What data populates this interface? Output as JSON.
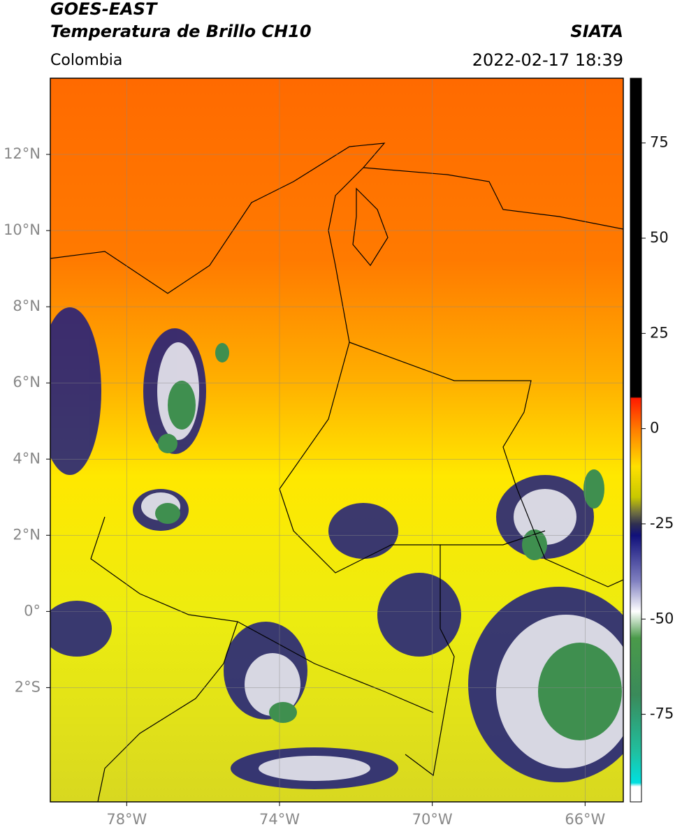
{
  "header": {
    "title": "GOES-EAST",
    "subtitle": "Temperatura de Brillo CH10",
    "source": "SIATA",
    "region": "Colombia",
    "datetime": "2022-02-17 18:39"
  },
  "map": {
    "xlim": [
      -80,
      -65
    ],
    "ylim": [
      -5,
      14
    ],
    "xticks": [
      {
        "value": -78,
        "label": "78°W"
      },
      {
        "value": -74,
        "label": "74°W"
      },
      {
        "value": -70,
        "label": "70°W"
      },
      {
        "value": -66,
        "label": "66°W"
      }
    ],
    "yticks": [
      {
        "value": 12,
        "label": "12°N"
      },
      {
        "value": 10,
        "label": "10°N"
      },
      {
        "value": 8,
        "label": "8°N"
      },
      {
        "value": 6,
        "label": "6°N"
      },
      {
        "value": 4,
        "label": "4°N"
      },
      {
        "value": 2,
        "label": "2°N"
      },
      {
        "value": 0,
        "label": "0°"
      },
      {
        "value": -2,
        "label": "2°S"
      }
    ],
    "grid": true
  },
  "colorbar": {
    "lim": [
      -98,
      92
    ],
    "ticks": [
      75,
      50,
      25,
      0,
      -25,
      -50,
      -75
    ],
    "stops": [
      {
        "value": 92,
        "color": "#000000"
      },
      {
        "value": 8.3,
        "color": "#000000"
      },
      {
        "value": 8,
        "color": "#ff1a00"
      },
      {
        "value": 0,
        "color": "#ff7a00"
      },
      {
        "value": -10,
        "color": "#ffe000"
      },
      {
        "value": -18,
        "color": "#c8c800"
      },
      {
        "value": -22,
        "color": "#707040"
      },
      {
        "value": -25,
        "color": "#303050"
      },
      {
        "value": -28,
        "color": "#10107a"
      },
      {
        "value": -40,
        "color": "#8080c0"
      },
      {
        "value": -48,
        "color": "#ffffff"
      },
      {
        "value": -55,
        "color": "#4a9a4a"
      },
      {
        "value": -70,
        "color": "#3a8a5a"
      },
      {
        "value": -85,
        "color": "#20c0a0"
      },
      {
        "value": -93,
        "color": "#00e0e0"
      },
      {
        "value": -94,
        "color": "#ffffff"
      },
      {
        "value": -98,
        "color": "#ffffff"
      }
    ]
  }
}
